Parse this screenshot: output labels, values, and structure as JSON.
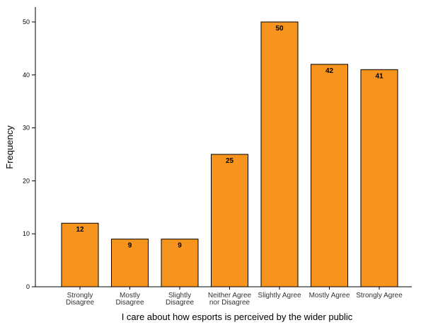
{
  "chart_data": {
    "type": "bar",
    "categories": [
      [
        "Strongly",
        "Disagree"
      ],
      [
        "Mostly",
        "Disagree"
      ],
      [
        "Slightly",
        "Disagree"
      ],
      [
        "Neither Agree",
        "nor Disagree"
      ],
      [
        "Slightly Agree"
      ],
      [
        "Mostly Agree"
      ],
      [
        "Strongly Agree"
      ]
    ],
    "values": [
      12,
      9,
      9,
      25,
      50,
      42,
      41
    ],
    "data_labels": [
      "12",
      "9",
      "9",
      "25",
      "50",
      "42",
      "41"
    ],
    "title": "",
    "xlabel": "I care about how esports is perceived by the wider public",
    "ylabel": "Frequency",
    "ylim": [
      0,
      53
    ],
    "yticks": [
      0,
      10,
      20,
      30,
      40,
      50
    ],
    "grid": false,
    "legend": "none",
    "bar_color": "#f7941d",
    "bar_edge_color": "#000000"
  }
}
